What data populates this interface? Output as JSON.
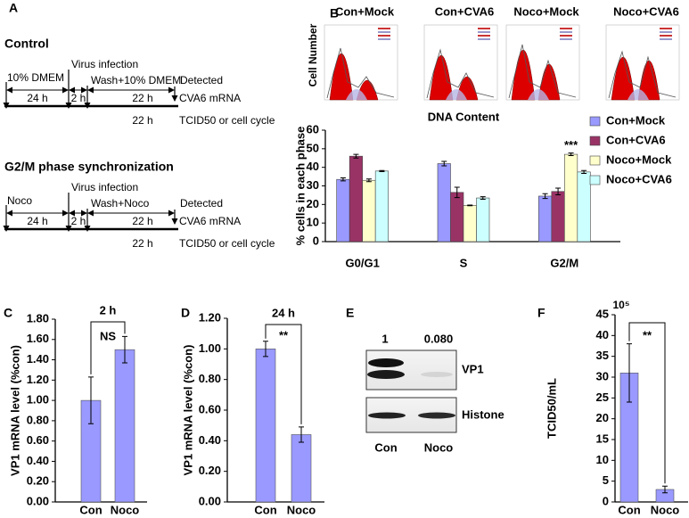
{
  "panel_labels": [
    "A",
    "B",
    "C",
    "D",
    "E",
    "F"
  ],
  "panel_a": {
    "control": {
      "title": "Control",
      "start": "10% DMEM",
      "infection": "Virus infection",
      "wash": "Wash+10% DMEM",
      "detected": "Detected",
      "first_interval": "24 h",
      "second_interval": "2 h",
      "third_interval": "22 h",
      "readout_1": "CVA6 mRNA",
      "fourth_interval": "22 h",
      "readout_2": "TCID50 or cell cycle"
    },
    "synchronized": {
      "title": "G2/M phase synchronization",
      "start": "Noco",
      "infection": "Virus infection",
      "wash": "Wash+Noco",
      "detected": "Detected",
      "first_interval": "24 h",
      "second_interval": "2 h",
      "third_interval": "22 h",
      "readout_1": "CVA6 mRNA",
      "fourth_interval": "22 h",
      "readout_2": "TCID50 or cell cycle"
    }
  },
  "panel_b_flow": {
    "y_label": "Cell Number",
    "x_label": "DNA Content",
    "titles": [
      "Con+Mock",
      "Con+CVA6",
      "Noco+Mock",
      "Noco+CVA6"
    ]
  },
  "panel_e": {
    "ratios": [
      "1",
      "0.080"
    ],
    "bands": [
      "VP1",
      "Histone"
    ],
    "lanes": [
      "Con",
      "Noco"
    ]
  },
  "chart_data": [
    {
      "type": "bar",
      "y_label": "% cells in each phase",
      "categories": [
        "G0/G1",
        "S",
        "G2/M"
      ],
      "series": [
        {
          "name": "Con+Mock",
          "color": "#9999ff",
          "values": [
            33.5,
            42,
            24.5
          ],
          "errors": [
            0.8,
            1.2,
            1.3
          ]
        },
        {
          "name": "Con+CVA6",
          "color": "#993366",
          "values": [
            46,
            26.5,
            27
          ],
          "errors": [
            1.0,
            2.8,
            1.8
          ]
        },
        {
          "name": "Noco+Mock",
          "color": "#ffffcc",
          "values": [
            33,
            19.5,
            47
          ],
          "errors": [
            0.7,
            0.2,
            0.7
          ]
        },
        {
          "name": "Noco+CVA6",
          "color": "#ccffff",
          "values": [
            38,
            23.5,
            37.5
          ],
          "errors": [
            0.3,
            0.7,
            0.8
          ]
        }
      ],
      "ylim": [
        0,
        60
      ],
      "yticks": [
        0,
        10,
        20,
        30,
        40,
        50,
        60
      ],
      "significance": "***",
      "legend": "right"
    },
    {
      "type": "bar",
      "y_label": "VP1 mRNA level (%con)",
      "categories": [
        "Con",
        "Noco"
      ],
      "color": "#9999ff",
      "values": [
        1.0,
        1.5
      ],
      "errors": [
        0.23,
        0.13
      ],
      "ylim": [
        0,
        1.8
      ],
      "yticks": [
        {
          "value": 0,
          "label": "0.00"
        },
        {
          "value": 0.2,
          "label": "0.20"
        },
        {
          "value": 0.4,
          "label": "0.40"
        },
        {
          "value": 0.6,
          "label": "0.60"
        },
        {
          "value": 0.8,
          "label": "0.80"
        },
        {
          "value": 1.0,
          "label": "1.00"
        },
        {
          "value": 1.2,
          "label": "1.20"
        },
        {
          "value": 1.4,
          "label": "1.40"
        },
        {
          "value": 1.6,
          "label": "1.60"
        },
        {
          "value": 1.8,
          "label": "1.80"
        }
      ],
      "bracket_label": "2 h",
      "significance": "NS"
    },
    {
      "type": "bar",
      "y_label": "VP1 mRNA level (%con)",
      "categories": [
        "Con",
        "Noco"
      ],
      "color": "#9999ff",
      "values": [
        1.0,
        0.44
      ],
      "errors": [
        0.05,
        0.05
      ],
      "ylim": [
        0,
        1.2
      ],
      "yticks": [
        {
          "value": 0,
          "label": "0.00"
        },
        {
          "value": 0.2,
          "label": "0.20"
        },
        {
          "value": 0.4,
          "label": "0.40"
        },
        {
          "value": 0.6,
          "label": "0.60"
        },
        {
          "value": 0.8,
          "label": "0.80"
        },
        {
          "value": 1.0,
          "label": "1.00"
        },
        {
          "value": 1.2,
          "label": "1.20"
        }
      ],
      "bracket_label": "24 h",
      "significance": "**"
    },
    {
      "type": "bar",
      "y_label": "TCID50/mL",
      "y_exponent_label": "10⁵",
      "categories": [
        "Con",
        "Noco"
      ],
      "color": "#9999ff",
      "values": [
        31,
        3
      ],
      "errors": [
        7,
        0.8
      ],
      "ylim": [
        0,
        45
      ],
      "yticks": [
        0,
        5,
        10,
        15,
        20,
        25,
        30,
        35,
        40,
        45
      ],
      "significance": "**"
    }
  ]
}
